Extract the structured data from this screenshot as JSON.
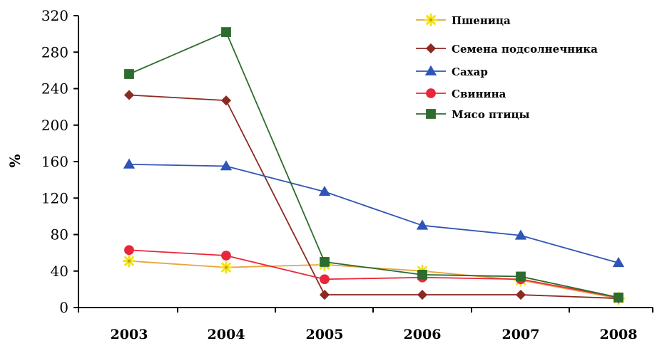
{
  "chart_data": {
    "type": "line",
    "title": "",
    "xlabel": "",
    "ylabel": "%",
    "x": [
      "2003",
      "2004",
      "2005",
      "2006",
      "2007",
      "2008"
    ],
    "ylim": [
      0,
      320
    ],
    "yticks": [
      0,
      40,
      80,
      120,
      160,
      200,
      240,
      280,
      320
    ],
    "grid": false,
    "legend_position": "top-right",
    "series": [
      {
        "name": "Пшеница",
        "values": [
          51,
          44,
          47,
          40,
          30,
          10
        ],
        "color": "#e8a33c",
        "marker": "star",
        "marker_color": "#f2e21a"
      },
      {
        "name": "Семена подсолнечника",
        "values": [
          233,
          227,
          14,
          14,
          14,
          10
        ],
        "color": "#8b2a22",
        "marker": "diamond",
        "marker_color": "#8b2a22"
      },
      {
        "name": "Сахар",
        "values": [
          157,
          155,
          127,
          90,
          79,
          49
        ],
        "color": "#2f55b5",
        "marker": "triangle",
        "marker_color": "#2f55b5"
      },
      {
        "name": "Свинина",
        "values": [
          63,
          57,
          31,
          33,
          31,
          11
        ],
        "color": "#e8283a",
        "marker": "circle",
        "marker_color": "#e8283a"
      },
      {
        "name": "Мясо птицы",
        "values": [
          256,
          302,
          50,
          36,
          34,
          11
        ],
        "color": "#2e6b2e",
        "marker": "square",
        "marker_color": "#2e6b2e"
      }
    ]
  }
}
